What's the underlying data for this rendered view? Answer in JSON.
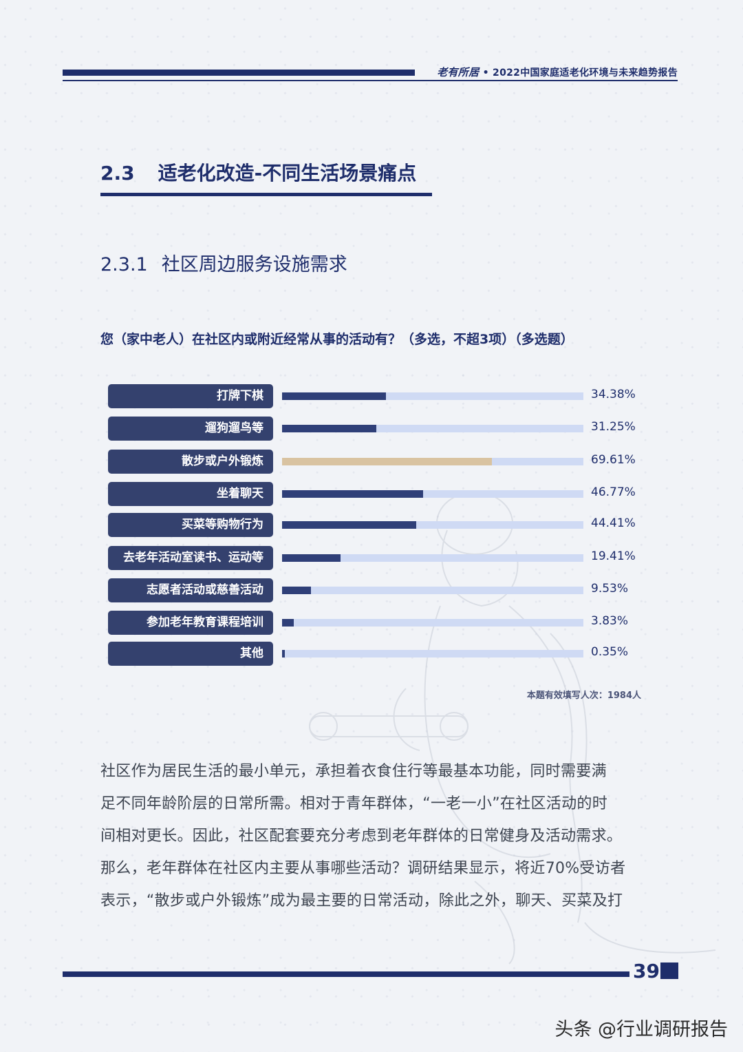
{
  "header": {
    "brand": "老有所居",
    "separator": "•",
    "report_title": "2022中国家庭适老化环境与未来趋势报告"
  },
  "section": {
    "number": "2.3",
    "title": "适老化改造-不同生活场景痛点"
  },
  "subsection": {
    "number": "2.3.1",
    "title": "社区周边服务设施需求"
  },
  "question": "您（家中老人）在社区内或附近经常从事的活动有？（多选，不超3项）（多选题）",
  "chart_data": {
    "type": "bar",
    "orientation": "horizontal",
    "categories": [
      "打牌下棋",
      "遛狗遛鸟等",
      "散步或户外锻炼",
      "坐着聊天",
      "买菜等购物行为",
      "去老年活动室读书、运动等",
      "志愿者活动或慈善活动",
      "参加老年教育课程培训",
      "其他"
    ],
    "values": [
      34.38,
      31.25,
      69.61,
      46.77,
      44.41,
      19.41,
      9.53,
      3.83,
      0.35
    ],
    "value_labels": [
      "34.38%",
      "31.25%",
      "69.61%",
      "46.77%",
      "44.41%",
      "19.41%",
      "9.53%",
      "3.83%",
      "0.35%"
    ],
    "highlight_index": 2,
    "xlim": [
      0,
      100
    ],
    "colors": {
      "bar": "#2f3f78",
      "highlight": "#d9c3a1",
      "track": "#cfdaf4",
      "label_bg": "#34416e"
    }
  },
  "note": "本题有效填写人次：1984人",
  "paragraph": [
    "社区作为居民生活的最小单元，承担着衣食住行等最基本功能，同时需要满",
    "足不同年龄阶层的日常所需。相对于青年群体，“一老一小”在社区活动的时",
    "间相对更长。因此，社区配套要充分考虑到老年群体的日常健身及活动需求。",
    "那么，老年群体在社区内主要从事哪些活动？调研结果显示，将近70%受访者",
    "表示，“散步或户外锻炼”成为最主要的日常活动，除此之外，聊天、买菜及打"
  ],
  "page_number": "39",
  "watermark": "头条 @行业调研报告"
}
